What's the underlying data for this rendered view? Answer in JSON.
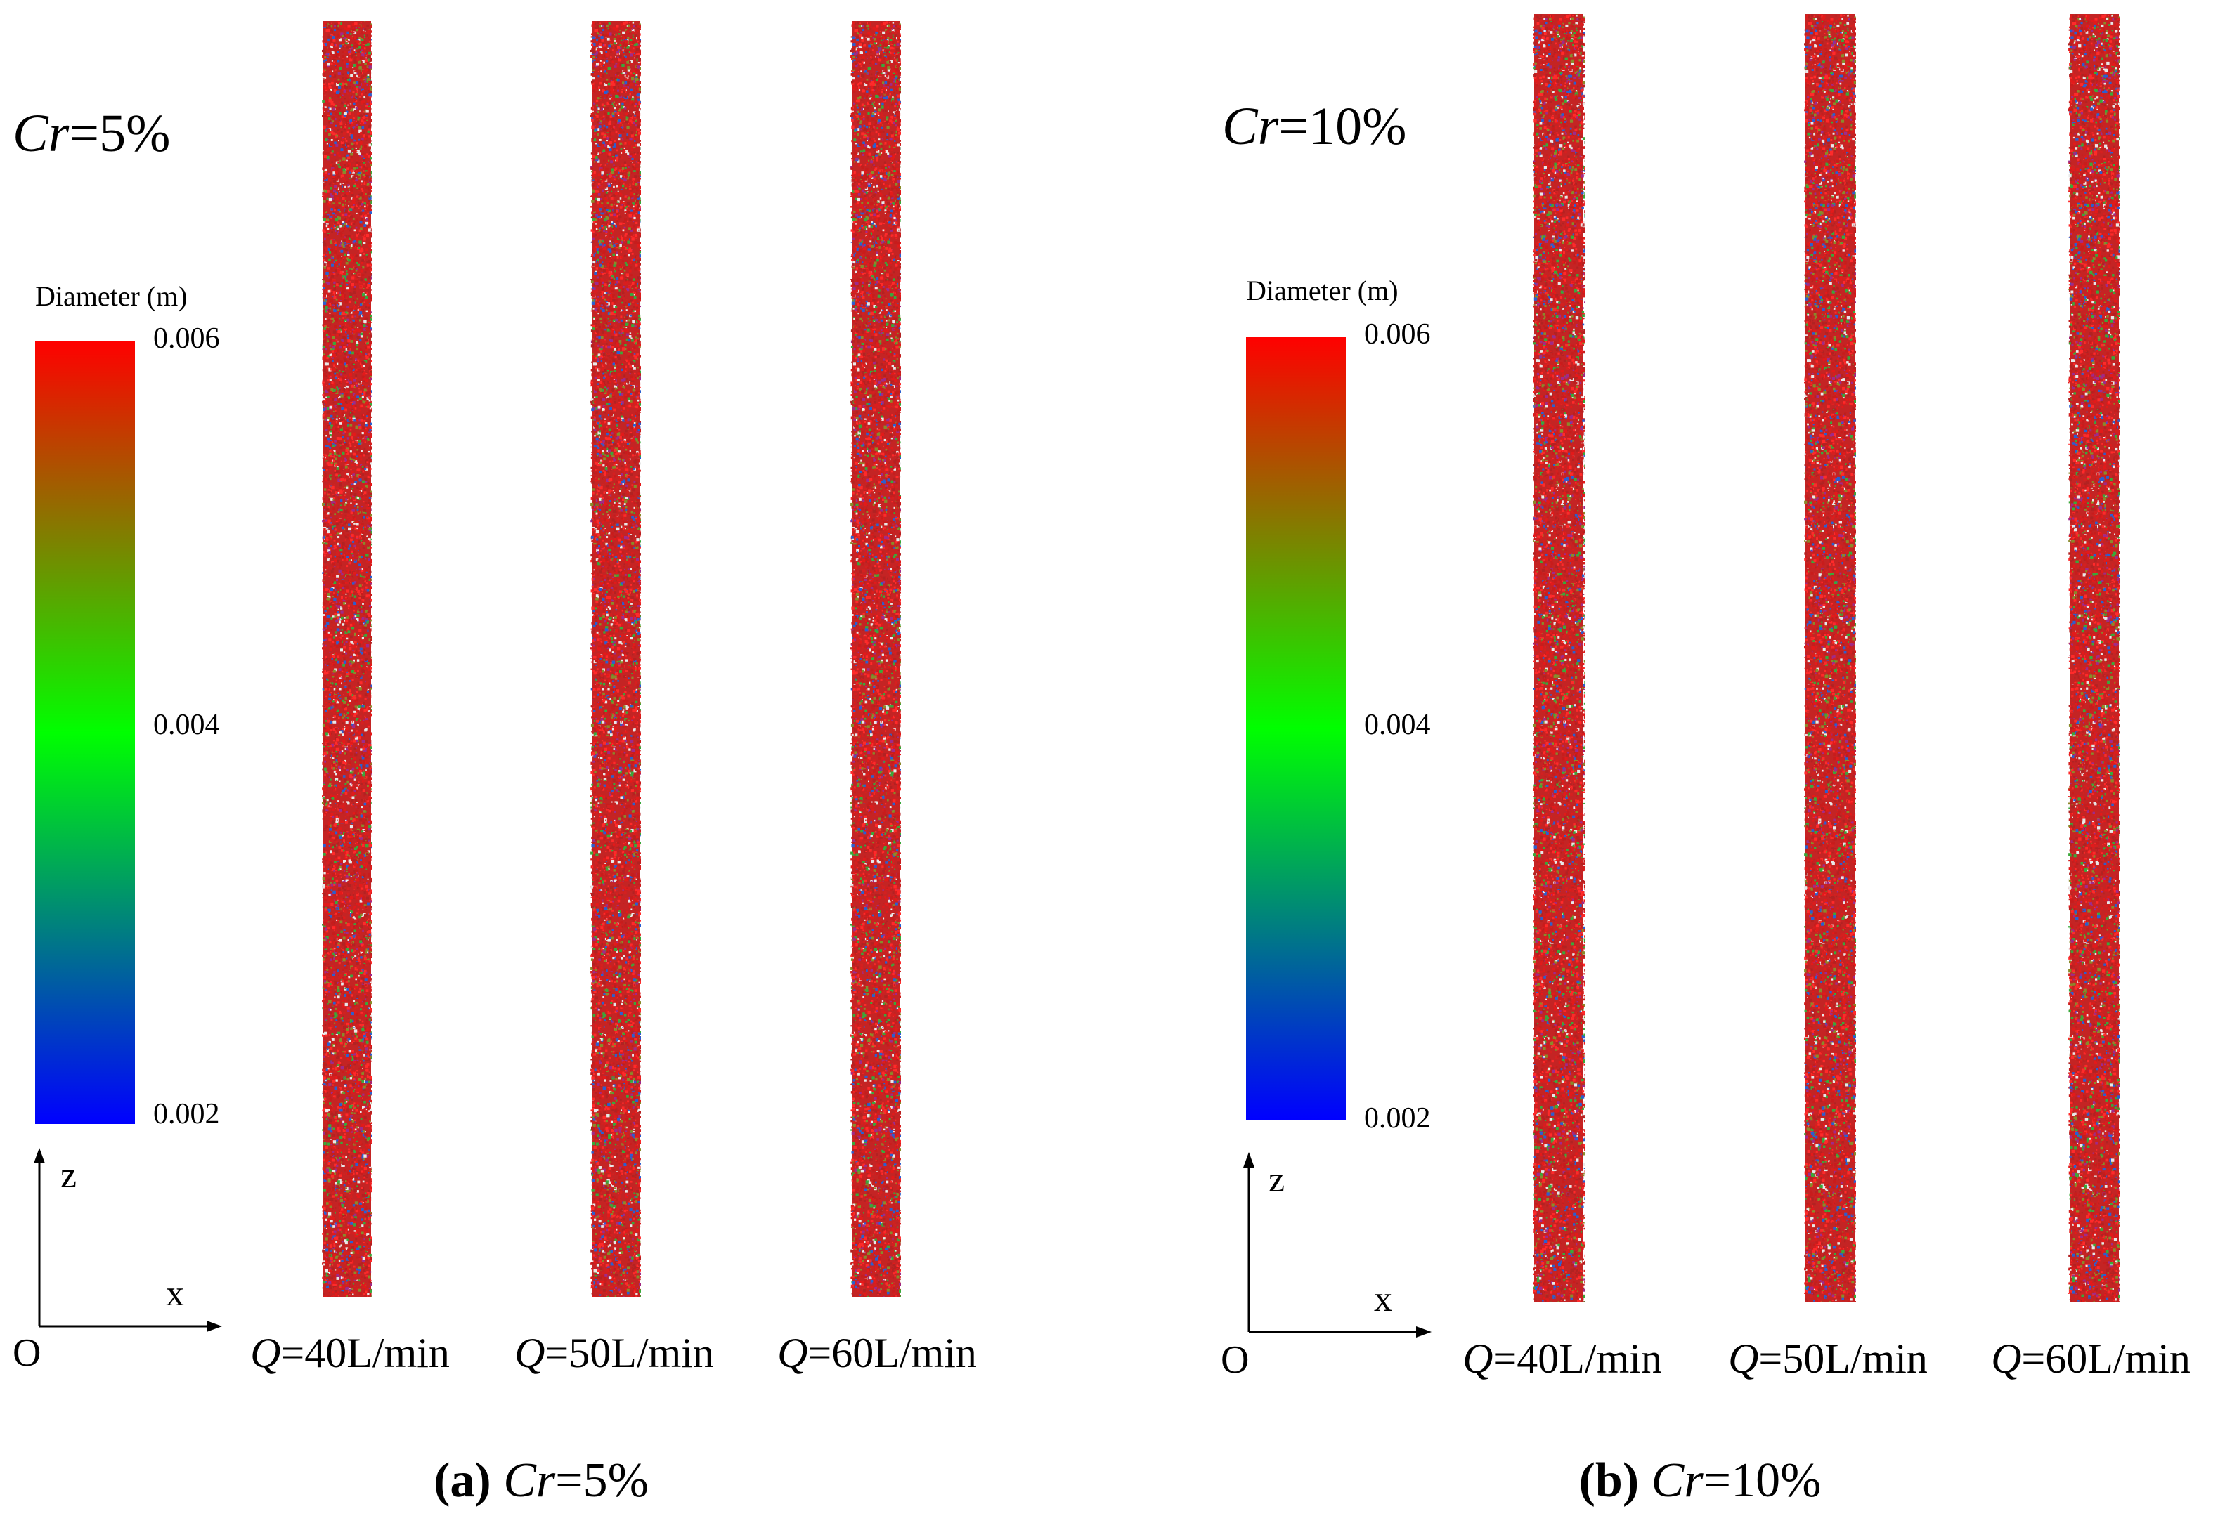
{
  "panels": [
    {
      "id": "a",
      "cr_title": {
        "var": "Cr",
        "value": "=5%"
      },
      "colorbar": {
        "title": "Diameter (m)",
        "max_label": "0.006",
        "mid_label": "0.004",
        "min_label": "0.002",
        "colors": [
          "#ff0000",
          "#00ff00",
          "#0000ff"
        ]
      },
      "axes": {
        "vertical": "z",
        "horizontal": "x",
        "origin": "O"
      },
      "columns": [
        {
          "var": "Q",
          "value": "=40L/min"
        },
        {
          "var": "Q",
          "value": "=50L/min"
        },
        {
          "var": "Q",
          "value": "=60L/min"
        }
      ],
      "caption": {
        "letter": "(a)",
        "var": "Cr",
        "value": "=5%"
      }
    },
    {
      "id": "b",
      "cr_title": {
        "var": "Cr",
        "value": "=10%"
      },
      "colorbar": {
        "title": "Diameter (m)",
        "max_label": "0.006",
        "mid_label": "0.004",
        "min_label": "0.002",
        "colors": [
          "#ff0000",
          "#00ff00",
          "#0000ff"
        ]
      },
      "axes": {
        "vertical": "z",
        "horizontal": "x",
        "origin": "O"
      },
      "columns": [
        {
          "var": "Q",
          "value": "=40L/min"
        },
        {
          "var": "Q",
          "value": "=50L/min"
        },
        {
          "var": "Q",
          "value": "=60L/min"
        }
      ],
      "caption": {
        "letter": "(b)",
        "var": "Cr",
        "value": "=10%"
      }
    }
  ],
  "particle_colors": [
    "#e31a1a",
    "#d42020",
    "#c81c1c",
    "#ff2a2a",
    "#b22222",
    "#3aa83a",
    "#8a8a2a",
    "#2b5fd0",
    "#a02a8a",
    "#e8e8e8"
  ]
}
